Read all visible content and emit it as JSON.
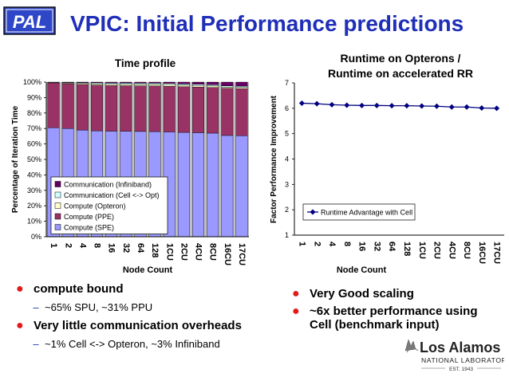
{
  "header": {
    "logo_text": "PAL",
    "title": "VPIC: Initial Performance predictions"
  },
  "chart_data": [
    {
      "type": "bar",
      "stacked": true,
      "title": "Time profile",
      "xlabel": "Node Count",
      "ylabel": "Percentage of Iteration Time",
      "ylim": [
        0,
        100
      ],
      "yticks": [
        "0%",
        "10%",
        "20%",
        "30%",
        "40%",
        "50%",
        "60%",
        "70%",
        "80%",
        "90%",
        "100%"
      ],
      "categories": [
        "1",
        "2",
        "4",
        "8",
        "16",
        "32",
        "64",
        "128",
        "1CU",
        "2CU",
        "4CU",
        "8CU",
        "16CU",
        "17CU"
      ],
      "series": [
        {
          "name": "Compute (SPE)",
          "color": "#9999ff",
          "values": [
            70.5,
            70,
            69,
            68.5,
            68.3,
            68.2,
            68.1,
            68,
            67.8,
            67.5,
            67.3,
            67,
            65.5,
            65.3
          ]
        },
        {
          "name": "Compute (PPE)",
          "color": "#993366",
          "values": [
            29,
            29,
            29.5,
            29.5,
            29.5,
            29.5,
            29.5,
            29.5,
            29.5,
            29.5,
            29.5,
            29.5,
            30.5,
            30.5
          ]
        },
        {
          "name": "Compute (Opteron)",
          "color": "#ffffcc",
          "values": [
            0.3,
            0.5,
            0.7,
            0.8,
            0.8,
            0.9,
            0.9,
            1,
            1,
            1,
            1,
            1,
            0.8,
            0.8
          ]
        },
        {
          "name": "Communication (Cell <-> Opt)",
          "color": "#ccffff",
          "values": [
            0.2,
            0.3,
            0.5,
            0.7,
            0.8,
            0.8,
            0.8,
            0.8,
            0.8,
            0.8,
            0.8,
            0.8,
            0.8,
            0.8
          ]
        },
        {
          "name": "Communication (Infiniband)",
          "color": "#660066",
          "values": [
            0,
            0.2,
            0.3,
            0.5,
            0.6,
            0.6,
            0.7,
            0.7,
            0.9,
            1.2,
            1.4,
            1.7,
            2.4,
            2.6
          ]
        }
      ],
      "legend_position": "bottom-left inside"
    },
    {
      "type": "line",
      "title": "Runtime on Opterons / Runtime on accelerated RR",
      "title_lines": [
        "Runtime on Opterons /",
        "Runtime on accelerated RR"
      ],
      "xlabel": "Node Count",
      "ylabel": "Factor Performance Improvement",
      "ylim": [
        1,
        7
      ],
      "yticks": [
        "1",
        "2",
        "3",
        "4",
        "5",
        "6",
        "7"
      ],
      "categories": [
        "1",
        "2",
        "4",
        "8",
        "16",
        "32",
        "64",
        "128",
        "1CU",
        "2CU",
        "4CU",
        "8CU",
        "16CU",
        "17CU"
      ],
      "series": [
        {
          "name": "Runtime Advantage with Cell",
          "color": "#000080",
          "values": [
            6.2,
            6.18,
            6.14,
            6.12,
            6.11,
            6.11,
            6.1,
            6.1,
            6.09,
            6.08,
            6.05,
            6.05,
            6.01,
            6.0
          ]
        }
      ],
      "legend_position": "bottom-left inside"
    }
  ],
  "left_bullets": {
    "b1": "compute bound",
    "b1_sub": "~65% SPU, ~31% PPU",
    "b2": "Very little communication overheads",
    "b2_sub": "~1% Cell <-> Opteron, ~3% Infiniband"
  },
  "right_bullets": {
    "b1": "Very Good scaling",
    "b2": "~6x better performance using Cell (benchmark input)"
  },
  "footer_logo": {
    "name": "Los Alamos",
    "sub": "NATIONAL LABORATORY",
    "est": "EST. 1943"
  }
}
